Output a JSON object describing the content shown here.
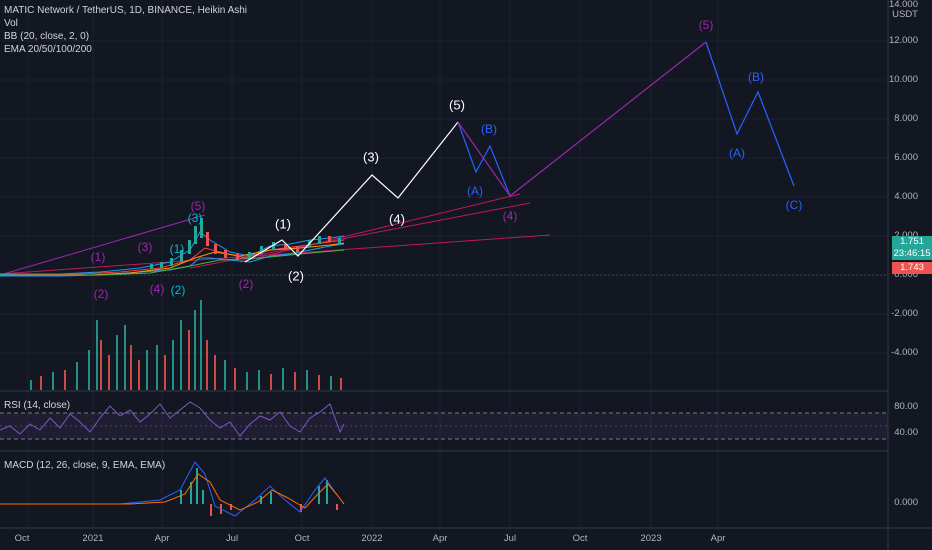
{
  "legend": {
    "symbol": "MATIC Network / TetherUS, 1D, BINANCE, Heikin Ashi",
    "vol": "Vol",
    "bb": "BB (20, close, 2, 0)",
    "ema": "EMA 20/50/100/200"
  },
  "price_axis": {
    "currency": "USDT",
    "ticks": [
      "14.000",
      "12.000",
      "10.000",
      "8.000",
      "6.000",
      "4.000",
      "2.000",
      "0.000",
      "-2.000",
      "-4.000"
    ],
    "current_price": "1.751",
    "countdown": "23:46:15",
    "prev_price": "1.743"
  },
  "rsi": {
    "label": "RSI (14, close)",
    "ticks": [
      "80.00",
      "40.00"
    ]
  },
  "macd": {
    "label": "MACD (12, 26, close, 9, EMA, EMA)",
    "ticks": [
      "0.000"
    ]
  },
  "time_axis": [
    "Oct",
    "2021",
    "Apr",
    "Jul",
    "Oct",
    "2022",
    "Apr",
    "Jul",
    "Oct",
    "2023",
    "Apr"
  ],
  "wave_labels": {
    "w5_white": "(5)",
    "w3_white": "(3)",
    "w4_white": "(4)",
    "w1_white": "(1)",
    "w2_white": "(2)",
    "wB_blue_1": "(B)",
    "wA_blue_1": "(A)",
    "w5_purple_top": "(5)",
    "wB_blue_2": "(B)",
    "wA_blue_2": "(A)",
    "wC_blue": "(C)",
    "w4_purple_mid": "(4)",
    "w1_purple": "(1)",
    "w2_purple_left": "(2)",
    "w3_purple": "(3)",
    "w4_purple_low": "(4)",
    "w2_cyan": "(2)",
    "w1_cyan": "(1)",
    "w2_purple_mid": "(2)",
    "w5_purple_small": "(5)",
    "w3_cyan": "(3)"
  },
  "colors": {
    "background": "#131722",
    "white_wave": "#ffffff",
    "purple_wave": "#9c27b0",
    "blue_wave": "#2962ff",
    "current_price_badge": "#26a69a",
    "prev_price_badge": "#ef5350",
    "rsi_line": "#7e57c2"
  }
}
